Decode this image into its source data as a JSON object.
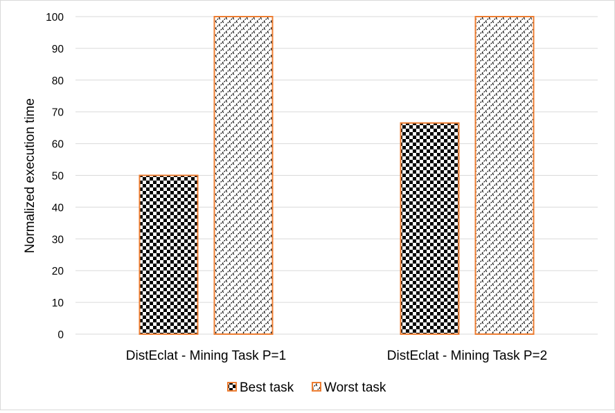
{
  "chart_data": {
    "type": "bar",
    "categories": [
      "DistEclat - Mining Task P=1",
      "DistEclat - Mining Task P=2"
    ],
    "series": [
      {
        "name": "Best task",
        "values": [
          50,
          66.5
        ],
        "pattern": "checker"
      },
      {
        "name": "Worst task",
        "values": [
          100,
          100
        ],
        "pattern": "diagonal"
      }
    ],
    "title": "",
    "xlabel": "",
    "ylabel": "Normalized execution time",
    "ylim": [
      0,
      100
    ],
    "yticks": [
      0,
      10,
      20,
      30,
      40,
      50,
      60,
      70,
      80,
      90,
      100
    ],
    "grid": true,
    "legend_position": "bottom",
    "colors": {
      "bar_border": "#ED7D31",
      "gridline": "#d9d9d9",
      "axis": "#d9d9d9",
      "pattern": "#000000"
    }
  }
}
